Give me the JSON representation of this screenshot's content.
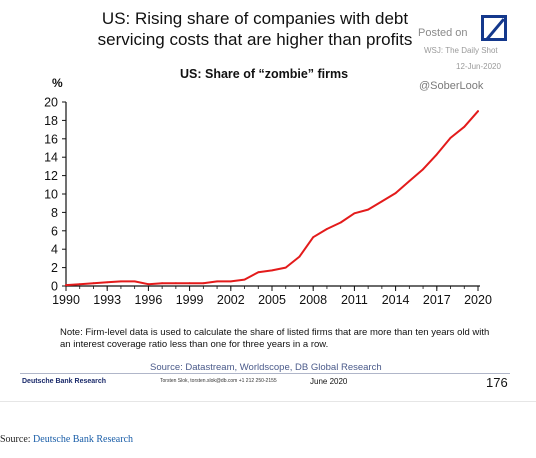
{
  "header": {
    "title_line1": "US: Rising share of companies with debt",
    "title_line2": "servicing costs that are higher than profits",
    "posted_on": "Posted on",
    "posted_source": "WSJ: The Daily Shot",
    "posted_date": "12-Jun-2020",
    "handle": "@SoberLook"
  },
  "notes": {
    "note_line1": "Note: Firm-level data is used to calculate the share of listed firms that are more than ten years old with",
    "note_line2": "an interest coverage ratio less than one for three years in a row.",
    "source": "Source: Datastream, Worldscope, DB Global Research"
  },
  "footer": {
    "org": "Deutsche Bank Research",
    "contact": "Torsten Slok, torsten.slok@db.com +1 212 250-2155",
    "date": "June 2020",
    "page": "176"
  },
  "caption": {
    "prefix": "Source: ",
    "link": "Deutsche Bank Research"
  },
  "colors": {
    "line": "#e31b1b",
    "brand": "#14388c"
  },
  "chart_data": {
    "type": "line",
    "title": "US: Share of “zombie” firms",
    "ylabel": "%",
    "xlim": [
      1990,
      2020
    ],
    "ylim": [
      0,
      20
    ],
    "xticks": [
      1990,
      1993,
      1996,
      1999,
      2002,
      2005,
      2008,
      2011,
      2014,
      2017,
      2020
    ],
    "yticks": [
      0,
      2,
      4,
      6,
      8,
      10,
      12,
      14,
      16,
      18,
      20
    ],
    "grid": false,
    "series": [
      {
        "color": "#e31b1b",
        "x": [
          1990,
          1991,
          1992,
          1993,
          1994,
          1995,
          1996,
          1997,
          1998,
          1999,
          2000,
          2001,
          2002,
          2003,
          2004,
          2005,
          2006,
          2007,
          2008,
          2009,
          2010,
          2011,
          2012,
          2013,
          2014,
          2015,
          2016,
          2017,
          2018,
          2019,
          2020
        ],
        "y": [
          0.1,
          0.2,
          0.3,
          0.4,
          0.5,
          0.5,
          0.2,
          0.3,
          0.3,
          0.3,
          0.3,
          0.5,
          0.5,
          0.7,
          1.5,
          1.7,
          2.0,
          3.2,
          5.3,
          6.2,
          6.9,
          7.9,
          8.3,
          9.2,
          10.1,
          11.4,
          12.7,
          14.3,
          16.1,
          17.3,
          19.0
        ]
      }
    ]
  }
}
